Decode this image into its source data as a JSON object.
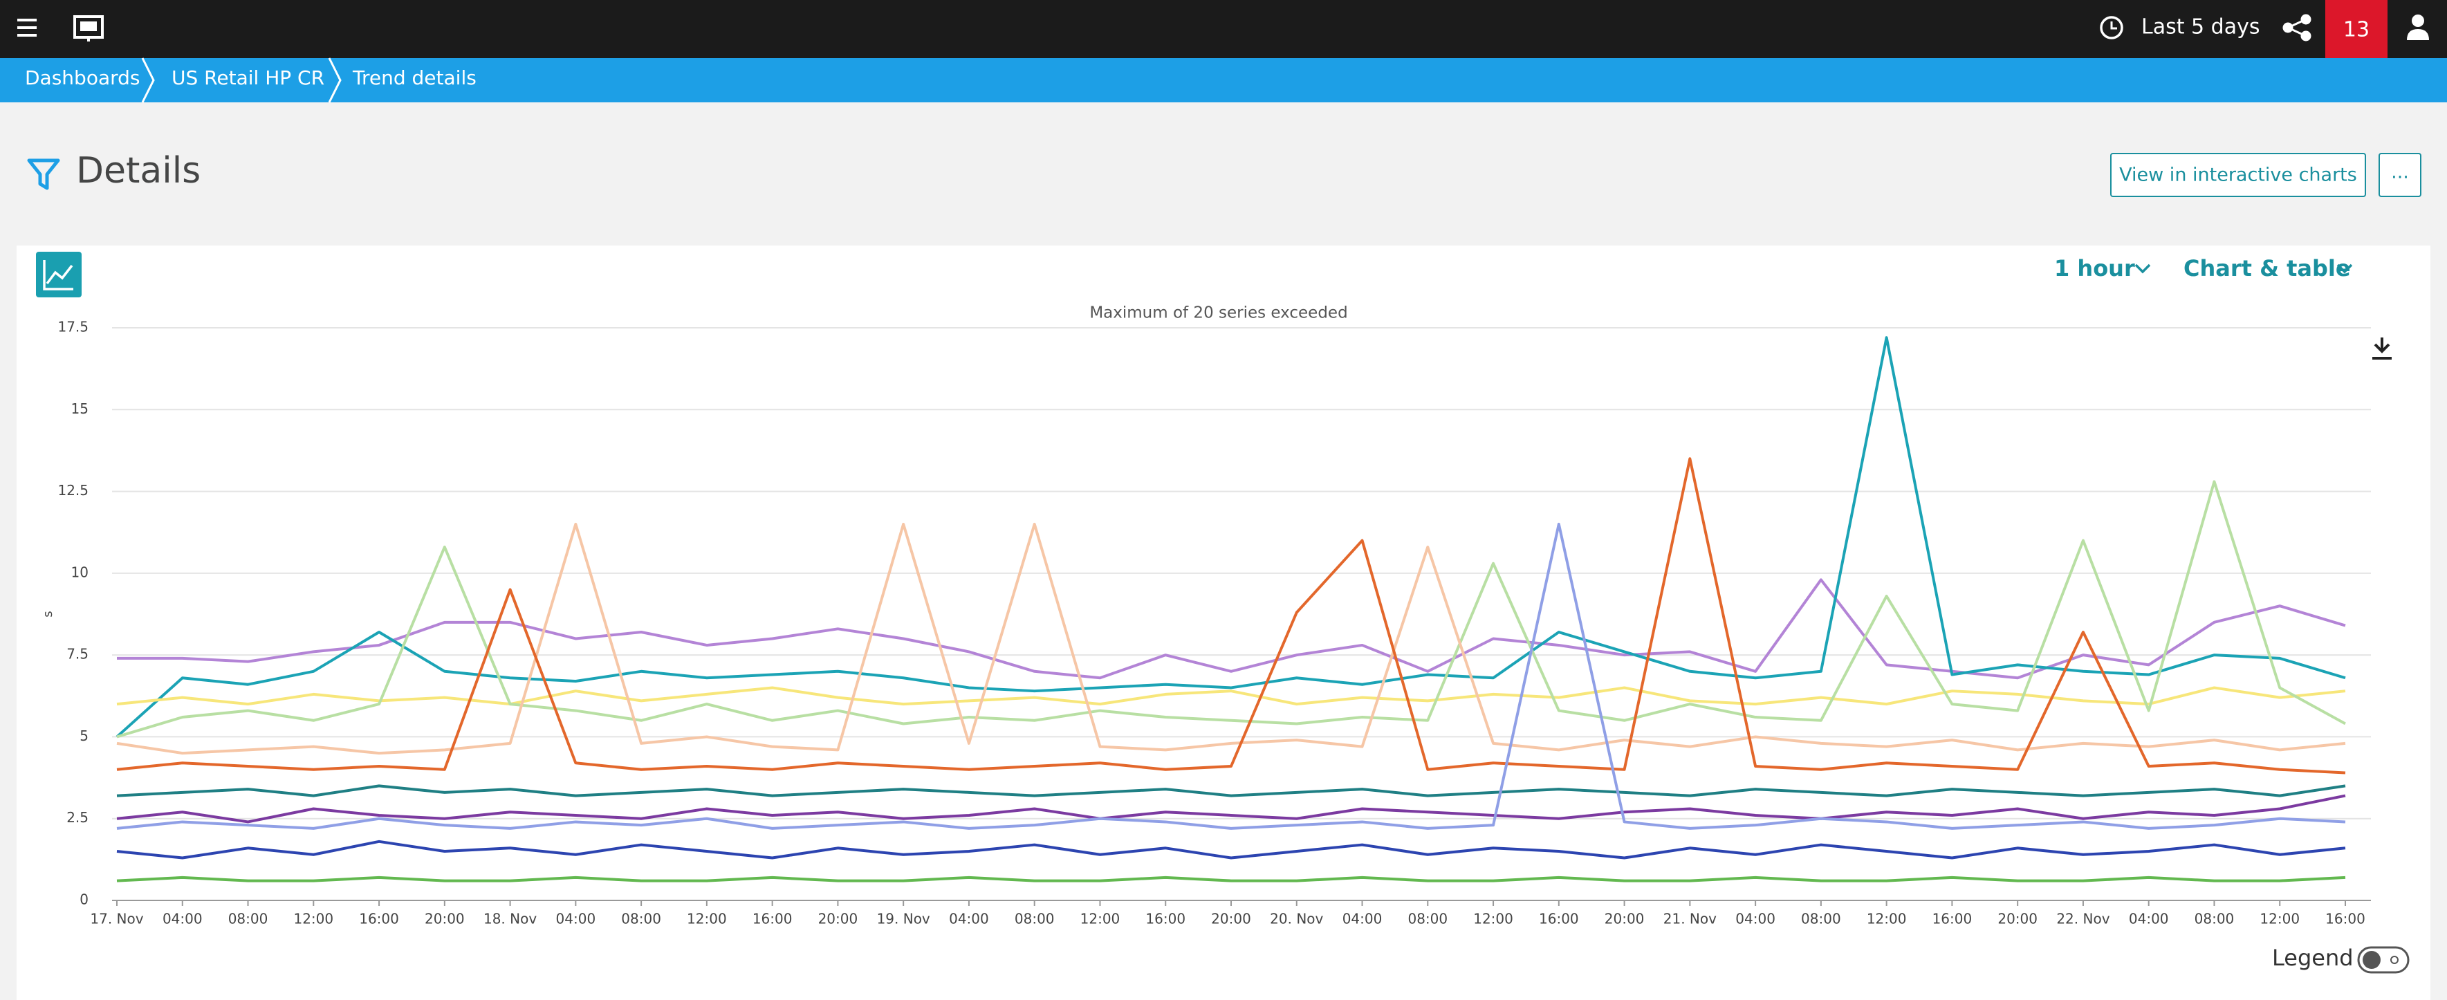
{
  "header": {
    "time_range": "Last 5 days",
    "notifications": "13"
  },
  "breadcrumbs": [
    "Dashboards",
    "US Retail HP CR",
    "Trend details"
  ],
  "page": {
    "title": "Details",
    "button": "View in interactive charts",
    "more": "..."
  },
  "card": {
    "resolution": "1 hour",
    "view": "Chart & table",
    "legend": "Legend"
  },
  "chart_data": {
    "type": "line",
    "title": "Maximum of 20 series exceeded",
    "y_label": "s",
    "categories": [
      "17. Nov",
      "04:00",
      "08:00",
      "12:00",
      "16:00",
      "20:00",
      "18. Nov",
      "04:00",
      "08:00",
      "12:00",
      "16:00",
      "20:00",
      "19. Nov",
      "04:00",
      "08:00",
      "12:00",
      "16:00",
      "20:00",
      "20. Nov",
      "04:00",
      "08:00",
      "12:00",
      "16:00",
      "20:00",
      "21. Nov",
      "04:00",
      "08:00",
      "12:00",
      "16:00",
      "20:00",
      "22. Nov",
      "04:00",
      "08:00",
      "12:00",
      "16:00"
    ],
    "ylim": [
      0,
      17.5
    ],
    "yticks": [
      0,
      2.5,
      5,
      7.5,
      10,
      12.5,
      15,
      17.5
    ],
    "grid": true,
    "series": [
      {
        "color": "#b384d6",
        "values": [
          7.4,
          7.4,
          7.3,
          7.6,
          7.8,
          8.5,
          8.5,
          8.0,
          8.2,
          7.8,
          8.0,
          8.3,
          8.0,
          7.6,
          7.0,
          6.8,
          7.5,
          7.0,
          7.5,
          7.8,
          7.0,
          8.0,
          7.8,
          7.5,
          7.6,
          7.0,
          9.8,
          7.2,
          7.0,
          6.8,
          7.5,
          7.2,
          8.5,
          9.0,
          8.4
        ]
      },
      {
        "color": "#1ba3b5",
        "values": [
          5.0,
          6.8,
          6.6,
          7.0,
          8.2,
          7.0,
          6.8,
          6.7,
          7.0,
          6.8,
          6.9,
          7.0,
          6.8,
          6.5,
          6.4,
          6.5,
          6.6,
          6.5,
          6.8,
          6.6,
          6.9,
          6.8,
          8.2,
          7.6,
          7.0,
          6.8,
          7.0,
          17.2,
          6.9,
          7.2,
          7.0,
          6.9,
          7.5,
          7.4,
          6.8
        ]
      },
      {
        "color": "#f7e67a",
        "values": [
          6.0,
          6.2,
          6.0,
          6.3,
          6.1,
          6.2,
          6.0,
          6.4,
          6.1,
          6.3,
          6.5,
          6.2,
          6.0,
          6.1,
          6.2,
          6.0,
          6.3,
          6.4,
          6.0,
          6.2,
          6.1,
          6.3,
          6.2,
          6.5,
          6.1,
          6.0,
          6.2,
          6.0,
          6.4,
          6.3,
          6.1,
          6.0,
          6.5,
          6.2,
          6.4
        ]
      },
      {
        "color": "#b8dfa3",
        "values": [
          5.0,
          5.6,
          5.8,
          5.5,
          6.0,
          10.8,
          6.0,
          5.8,
          5.5,
          6.0,
          5.5,
          5.8,
          5.4,
          5.6,
          5.5,
          5.8,
          5.6,
          5.5,
          5.4,
          5.6,
          5.5,
          10.3,
          5.8,
          5.5,
          6.0,
          5.6,
          5.5,
          9.3,
          6.0,
          5.8,
          11.0,
          5.8,
          12.8,
          6.5,
          5.4
        ]
      },
      {
        "color": "#f6c6a6",
        "values": [
          4.8,
          4.5,
          4.6,
          4.7,
          4.5,
          4.6,
          4.8,
          11.5,
          4.8,
          5.0,
          4.7,
          4.6,
          11.5,
          4.8,
          11.5,
          4.7,
          4.6,
          4.8,
          4.9,
          4.7,
          10.8,
          4.8,
          4.6,
          4.9,
          4.7,
          5.0,
          4.8,
          4.7,
          4.9,
          4.6,
          4.8,
          4.7,
          4.9,
          4.6,
          4.8
        ]
      },
      {
        "color": "#e3672b",
        "values": [
          4.0,
          4.2,
          4.1,
          4.0,
          4.1,
          4.0,
          9.5,
          4.2,
          4.0,
          4.1,
          4.0,
          4.2,
          4.1,
          4.0,
          4.1,
          4.2,
          4.0,
          4.1,
          8.8,
          11.0,
          4.0,
          4.2,
          4.1,
          4.0,
          13.5,
          4.1,
          4.0,
          4.2,
          4.1,
          4.0,
          8.2,
          4.1,
          4.2,
          4.0,
          3.9
        ]
      },
      {
        "color": "#1f7f84",
        "values": [
          3.2,
          3.3,
          3.4,
          3.2,
          3.5,
          3.3,
          3.4,
          3.2,
          3.3,
          3.4,
          3.2,
          3.3,
          3.4,
          3.3,
          3.2,
          3.3,
          3.4,
          3.2,
          3.3,
          3.4,
          3.2,
          3.3,
          3.4,
          3.3,
          3.2,
          3.4,
          3.3,
          3.2,
          3.4,
          3.3,
          3.2,
          3.3,
          3.4,
          3.2,
          3.5
        ]
      },
      {
        "color": "#7b3aa0",
        "values": [
          2.5,
          2.7,
          2.4,
          2.8,
          2.6,
          2.5,
          2.7,
          2.6,
          2.5,
          2.8,
          2.6,
          2.7,
          2.5,
          2.6,
          2.8,
          2.5,
          2.7,
          2.6,
          2.5,
          2.8,
          2.7,
          2.6,
          2.5,
          2.7,
          2.8,
          2.6,
          2.5,
          2.7,
          2.6,
          2.8,
          2.5,
          2.7,
          2.6,
          2.8,
          3.2
        ]
      },
      {
        "color": "#8f9fe6",
        "values": [
          2.2,
          2.4,
          2.3,
          2.2,
          2.5,
          2.3,
          2.2,
          2.4,
          2.3,
          2.5,
          2.2,
          2.3,
          2.4,
          2.2,
          2.3,
          2.5,
          2.4,
          2.2,
          2.3,
          2.4,
          2.2,
          2.3,
          11.5,
          2.4,
          2.2,
          2.3,
          2.5,
          2.4,
          2.2,
          2.3,
          2.4,
          2.2,
          2.3,
          2.5,
          2.4
        ]
      },
      {
        "color": "#2c44b0",
        "values": [
          1.5,
          1.3,
          1.6,
          1.4,
          1.8,
          1.5,
          1.6,
          1.4,
          1.7,
          1.5,
          1.3,
          1.6,
          1.4,
          1.5,
          1.7,
          1.4,
          1.6,
          1.3,
          1.5,
          1.7,
          1.4,
          1.6,
          1.5,
          1.3,
          1.6,
          1.4,
          1.7,
          1.5,
          1.3,
          1.6,
          1.4,
          1.5,
          1.7,
          1.4,
          1.6
        ]
      },
      {
        "color": "#62b84f",
        "values": [
          0.6,
          0.7,
          0.6,
          0.6,
          0.7,
          0.6,
          0.6,
          0.7,
          0.6,
          0.6,
          0.7,
          0.6,
          0.6,
          0.7,
          0.6,
          0.6,
          0.7,
          0.6,
          0.6,
          0.7,
          0.6,
          0.6,
          0.7,
          0.6,
          0.6,
          0.7,
          0.6,
          0.6,
          0.7,
          0.6,
          0.6,
          0.7,
          0.6,
          0.6,
          0.7
        ]
      }
    ]
  }
}
